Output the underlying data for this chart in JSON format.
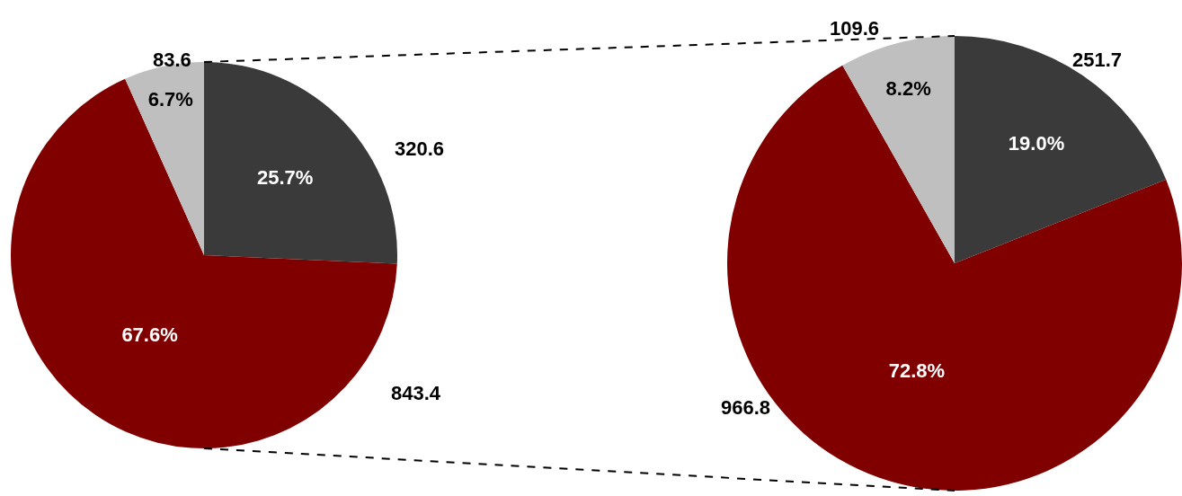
{
  "chart_data": [
    {
      "type": "pie",
      "categories": [
        null,
        null,
        null
      ],
      "values": [
        25.7,
        67.6,
        6.7
      ],
      "colors": [
        "#3a3a3a",
        "#800000",
        "#bfbfbf"
      ],
      "value_labels": [
        "25.7%",
        "67.6%",
        "6.7%"
      ],
      "annotations": [
        "320.6",
        "843.4",
        "83.6"
      ]
    },
    {
      "type": "pie",
      "categories": [
        null,
        null,
        null
      ],
      "values": [
        19.0,
        72.8,
        8.2
      ],
      "colors": [
        "#3a3a3a",
        "#800000",
        "#bfbfbf"
      ],
      "value_labels": [
        "19.0%",
        "72.8%",
        "8.2%"
      ],
      "annotations": [
        "251.7",
        "966.8",
        "109.6"
      ]
    }
  ]
}
